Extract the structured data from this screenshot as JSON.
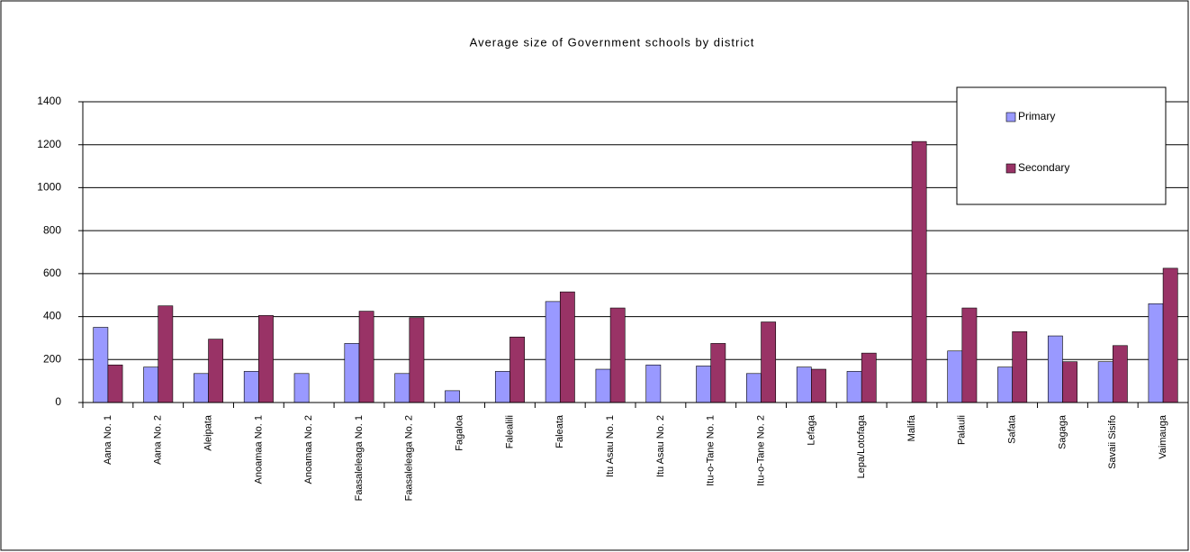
{
  "chart_data": {
    "type": "bar",
    "title": "Average size of Government schools by district",
    "categories": [
      "Aana No. 1",
      "Aana No. 2",
      "Aleipata",
      "Anoamaa No. 1",
      "Anoamaa No. 2",
      "Faasaleleaga No. 1",
      "Faasaleleaga No. 2",
      "Fagaloa",
      "Falealili",
      "Faleata",
      "Itu Asau No. 1",
      "Itu Asau No. 2",
      "Itu-o-Tane No. 1",
      "Itu-o-Tane No. 2",
      "Lefaga",
      "Lepa/Lotofaga",
      "Malifa",
      "Palauli",
      "Safata",
      "Sagaga",
      "Savaii Sisifo",
      "Vaimauga"
    ],
    "series": [
      {
        "name": "Primary",
        "color": "#9999ff",
        "values": [
          350,
          165,
          135,
          145,
          135,
          275,
          135,
          55,
          145,
          470,
          155,
          175,
          170,
          135,
          165,
          145,
          null,
          240,
          165,
          310,
          190,
          460
        ]
      },
      {
        "name": "Secondary",
        "color": "#993366",
        "values": [
          175,
          450,
          295,
          405,
          null,
          425,
          395,
          null,
          305,
          515,
          440,
          null,
          275,
          375,
          155,
          230,
          1215,
          440,
          330,
          190,
          265,
          625
        ]
      }
    ],
    "ylim": [
      0,
      1400
    ],
    "yticks": [
      0,
      200,
      400,
      600,
      800,
      1000,
      1200,
      1400
    ],
    "grid": true,
    "legend": "top-right"
  }
}
